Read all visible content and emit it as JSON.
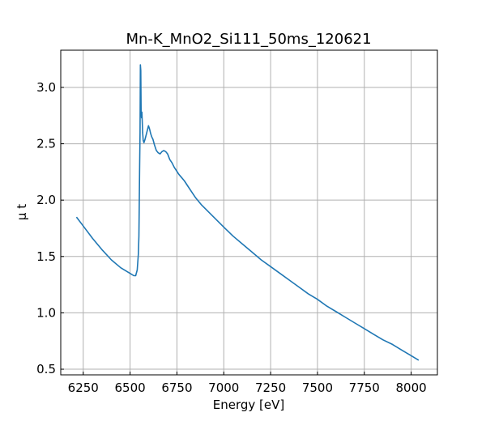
{
  "chart_data": {
    "type": "line",
    "title": "Mn-K_MnO2_Si111_50ms_120621",
    "xlabel": "Energy [eV]",
    "ylabel": "μ t",
    "xlim": [
      6130,
      8140
    ],
    "ylim": [
      0.45,
      3.33
    ],
    "xticks": [
      6250,
      6500,
      6750,
      7000,
      7250,
      7500,
      7750,
      8000
    ],
    "yticks": [
      0.5,
      1.0,
      1.5,
      2.0,
      2.5,
      3.0
    ],
    "xtick_labels": [
      "6250",
      "6500",
      "6750",
      "7000",
      "7250",
      "7500",
      "7750",
      "8000"
    ],
    "ytick_labels": [
      "0.5",
      "1.0",
      "1.5",
      "2.0",
      "2.5",
      "3.0"
    ],
    "grid": true,
    "legend": null,
    "series": [
      {
        "color": "#1f77b4",
        "x": [
          6214,
          6250,
          6300,
          6350,
          6400,
          6450,
          6500,
          6520,
          6530,
          6538,
          6541,
          6544,
          6547,
          6549,
          6551,
          6553,
          6555,
          6557,
          6559,
          6561,
          6563,
          6565,
          6567,
          6570,
          6574,
          6580,
          6586,
          6592,
          6598,
          6604,
          6610,
          6616,
          6622,
          6630,
          6640,
          6650,
          6660,
          6670,
          6680,
          6690,
          6700,
          6712,
          6724,
          6736,
          6748,
          6760,
          6775,
          6790,
          6810,
          6830,
          6850,
          6880,
          6910,
          6940,
          6970,
          7000,
          7050,
          7100,
          7150,
          7200,
          7250,
          7300,
          7350,
          7400,
          7450,
          7500,
          7550,
          7600,
          7650,
          7700,
          7750,
          7800,
          7850,
          7900,
          7950,
          8000,
          8040
        ],
        "y": [
          1.85,
          1.77,
          1.66,
          1.56,
          1.47,
          1.4,
          1.35,
          1.33,
          1.33,
          1.38,
          1.45,
          1.52,
          1.68,
          1.95,
          2.3,
          2.6,
          3.2,
          3.15,
          2.8,
          2.73,
          2.78,
          2.7,
          2.6,
          2.53,
          2.51,
          2.54,
          2.58,
          2.62,
          2.66,
          2.63,
          2.59,
          2.56,
          2.54,
          2.49,
          2.44,
          2.42,
          2.41,
          2.43,
          2.44,
          2.43,
          2.41,
          2.36,
          2.33,
          2.29,
          2.26,
          2.23,
          2.2,
          2.17,
          2.12,
          2.07,
          2.02,
          1.96,
          1.91,
          1.86,
          1.81,
          1.76,
          1.68,
          1.61,
          1.54,
          1.47,
          1.41,
          1.35,
          1.29,
          1.23,
          1.17,
          1.12,
          1.06,
          1.01,
          0.96,
          0.91,
          0.86,
          0.81,
          0.76,
          0.72,
          0.67,
          0.62,
          0.58
        ]
      }
    ]
  }
}
